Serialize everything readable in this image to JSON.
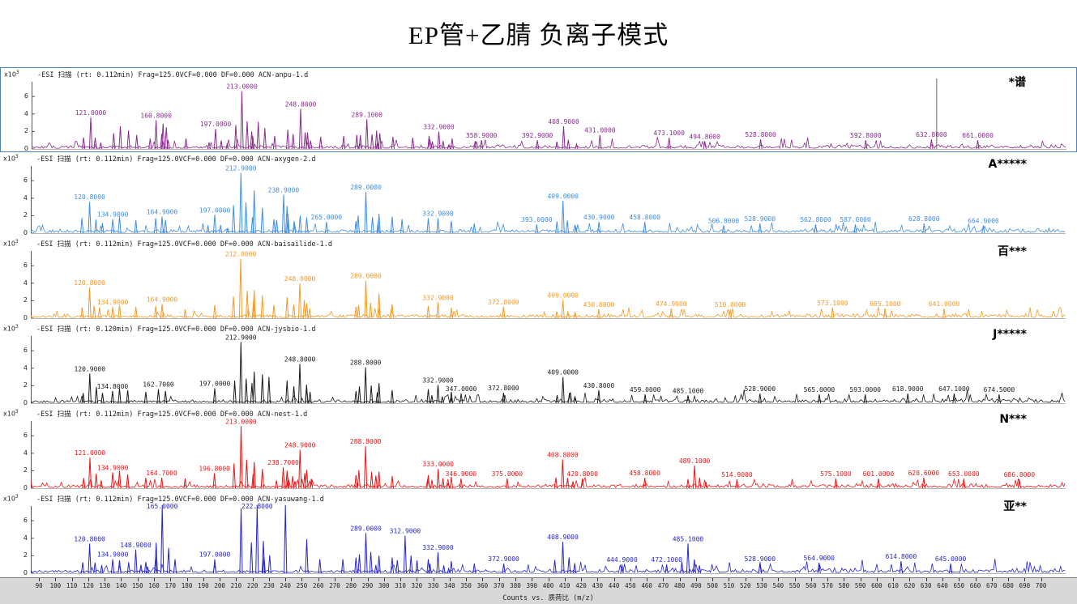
{
  "title": "EP管+乙腈 负离子模式",
  "axis": {
    "x_min": 90,
    "x_max": 700,
    "x_step": 10,
    "x_title": "Counts vs. 质荷比 (m/z)",
    "y_unit": "x10",
    "y_exp": "3",
    "y_ticks": [
      0,
      2,
      4,
      6
    ]
  },
  "chart_data": [
    {
      "type": "line",
      "name": "ACN-anpu-1.d",
      "header": "-ESI 扫描 (rt: 0.112min) Frag=125.0VCF=0.000 DF=0.000 ACN-anpu-1.d",
      "right_label": "*谱",
      "color": "#8a2b8f",
      "selected": true,
      "cursor_mz": 636,
      "peaks": [
        {
          "mz": 121.0,
          "h": 3.6,
          "label": "121.0000"
        },
        {
          "mz": 160.8,
          "h": 3.3,
          "label": "160.8000"
        },
        {
          "mz": 197.0,
          "h": 2.3,
          "label": "197.0000"
        },
        {
          "mz": 213.0,
          "h": 6.6,
          "label": "213.0000"
        },
        {
          "mz": 248.8,
          "h": 4.6,
          "label": "248.8000"
        },
        {
          "mz": 289.1,
          "h": 3.4,
          "label": "289.1000"
        },
        {
          "mz": 332.9,
          "h": 2.0,
          "label": "332.9000"
        },
        {
          "mz": 358.9,
          "h": 1.0,
          "label": "358.9000"
        },
        {
          "mz": 392.9,
          "h": 1.0,
          "label": "392.9000"
        },
        {
          "mz": 408.9,
          "h": 2.6,
          "label": "408.9000"
        },
        {
          "mz": 431.0,
          "h": 1.6,
          "label": "431.0000"
        },
        {
          "mz": 473.1,
          "h": 1.3,
          "label": "473.1000"
        },
        {
          "mz": 494.8,
          "h": 0.9,
          "label": "494.8000"
        },
        {
          "mz": 528.8,
          "h": 1.1,
          "label": "528.8000"
        },
        {
          "mz": 592.8,
          "h": 1.0,
          "label": "592.8000"
        },
        {
          "mz": 632.8,
          "h": 1.1,
          "label": "632.8000"
        },
        {
          "mz": 661.0,
          "h": 1.0,
          "label": "661.0000"
        },
        {
          "mz": 135,
          "h": 1.8
        },
        {
          "mz": 139,
          "h": 2.6
        },
        {
          "mz": 144,
          "h": 2.1
        },
        {
          "mz": 149,
          "h": 1.6
        },
        {
          "mz": 165,
          "h": 2.9
        },
        {
          "mz": 167,
          "h": 2.5
        },
        {
          "mz": 179,
          "h": 1.2
        },
        {
          "mz": 219,
          "h": 2.0
        },
        {
          "mz": 223,
          "h": 3.1
        },
        {
          "mz": 227,
          "h": 2.4
        },
        {
          "mz": 233,
          "h": 1.5
        },
        {
          "mz": 241,
          "h": 2.2
        },
        {
          "mz": 253,
          "h": 1.9
        },
        {
          "mz": 261,
          "h": 1.4
        },
        {
          "mz": 275,
          "h": 1.5
        },
        {
          "mz": 283,
          "h": 1.6
        },
        {
          "mz": 295,
          "h": 2.1
        },
        {
          "mz": 297,
          "h": 1.8
        },
        {
          "mz": 305,
          "h": 1.4
        },
        {
          "mz": 317,
          "h": 1.3
        },
        {
          "mz": 327,
          "h": 1.5
        },
        {
          "mz": 341,
          "h": 1.2
        },
        {
          "mz": 355,
          "h": 0.9
        }
      ]
    },
    {
      "type": "line",
      "name": "ACN-axygen-2.d",
      "header": "-ESI 扫描 (rt: 0.112min) Frag=125.0VCF=0.000 DF=0.000 ACN-axygen-2.d",
      "right_label": "A*****",
      "color": "#3e8ee4",
      "selected": false,
      "peaks": [
        {
          "mz": 120.8,
          "h": 3.6,
          "label": "120.8000"
        },
        {
          "mz": 134.9,
          "h": 1.6,
          "label": "134.9000"
        },
        {
          "mz": 164.9,
          "h": 1.9,
          "label": "164.9000"
        },
        {
          "mz": 197.0,
          "h": 2.1,
          "label": "197.0000"
        },
        {
          "mz": 212.9,
          "h": 6.9,
          "label": "212.9000"
        },
        {
          "mz": 238.9,
          "h": 4.4,
          "label": "238.9000"
        },
        {
          "mz": 265.0,
          "h": 1.3,
          "label": "265.0000"
        },
        {
          "mz": 289.0,
          "h": 4.7,
          "label": "289.0000"
        },
        {
          "mz": 332.9,
          "h": 1.7,
          "label": "332.9000"
        },
        {
          "mz": 393.0,
          "h": 1.0,
          "label": "393.0000"
        },
        {
          "mz": 409.0,
          "h": 3.7,
          "label": "409.0000"
        },
        {
          "mz": 430.9,
          "h": 1.3,
          "label": "430.9000"
        },
        {
          "mz": 458.8,
          "h": 1.3,
          "label": "458.8000"
        },
        {
          "mz": 506.8,
          "h": 0.9,
          "label": "506.8000"
        },
        {
          "mz": 528.9,
          "h": 1.1,
          "label": "528.9000"
        },
        {
          "mz": 562.8,
          "h": 1.0,
          "label": "562.8000"
        },
        {
          "mz": 587.0,
          "h": 1.0,
          "label": "587.0000"
        },
        {
          "mz": 628.8,
          "h": 1.1,
          "label": "628.8000"
        },
        {
          "mz": 664.9,
          "h": 0.9,
          "label": "664.9000"
        },
        {
          "mz": 139,
          "h": 1.9
        },
        {
          "mz": 149,
          "h": 1.5
        },
        {
          "mz": 161,
          "h": 1.7
        },
        {
          "mz": 167,
          "h": 1.5
        },
        {
          "mz": 221,
          "h": 4.9
        },
        {
          "mz": 226,
          "h": 2.9
        },
        {
          "mz": 233,
          "h": 1.6
        },
        {
          "mz": 241,
          "h": 3.1
        },
        {
          "mz": 249,
          "h": 2.0
        },
        {
          "mz": 253,
          "h": 1.8
        },
        {
          "mz": 283,
          "h": 1.4
        },
        {
          "mz": 297,
          "h": 2.2
        },
        {
          "mz": 305,
          "h": 1.9
        },
        {
          "mz": 311,
          "h": 1.6
        },
        {
          "mz": 327,
          "h": 1.7
        },
        {
          "mz": 341,
          "h": 1.4
        },
        {
          "mz": 355,
          "h": 1.1
        }
      ]
    },
    {
      "type": "line",
      "name": "ACN-baisailide-1.d",
      "header": "-ESI 扫描 (rt: 0.112min) Frag=125.0VCF=0.000 DF=0.000 ACN-baisailide-1.d",
      "right_label": "百***",
      "color": "#f59a23",
      "selected": false,
      "peaks": [
        {
          "mz": 120.8,
          "h": 3.5,
          "label": "120.8000"
        },
        {
          "mz": 134.9,
          "h": 1.3,
          "label": "134.9000"
        },
        {
          "mz": 164.9,
          "h": 1.6,
          "label": "164.9000"
        },
        {
          "mz": 212.8,
          "h": 6.8,
          "label": "212.8000"
        },
        {
          "mz": 248.8,
          "h": 4.0,
          "label": "248.8000"
        },
        {
          "mz": 289.0,
          "h": 4.3,
          "label": "289.0000"
        },
        {
          "mz": 332.9,
          "h": 1.8,
          "label": "332.9000"
        },
        {
          "mz": 372.8,
          "h": 1.3,
          "label": "372.8000"
        },
        {
          "mz": 409.0,
          "h": 2.1,
          "label": "409.0000"
        },
        {
          "mz": 430.8,
          "h": 1.0,
          "label": "430.8000"
        },
        {
          "mz": 474.9,
          "h": 1.1,
          "label": "474.9000"
        },
        {
          "mz": 510.8,
          "h": 1.0,
          "label": "510.8000"
        },
        {
          "mz": 573.1,
          "h": 1.2,
          "label": "573.1000"
        },
        {
          "mz": 605.1,
          "h": 1.1,
          "label": "605.1000"
        },
        {
          "mz": 641.0,
          "h": 1.1,
          "label": "641.0000"
        },
        {
          "mz": 139,
          "h": 1.5
        },
        {
          "mz": 149,
          "h": 1.3
        },
        {
          "mz": 161,
          "h": 1.4
        },
        {
          "mz": 179,
          "h": 1.0
        },
        {
          "mz": 197,
          "h": 1.5
        },
        {
          "mz": 221,
          "h": 3.2
        },
        {
          "mz": 226,
          "h": 2.6
        },
        {
          "mz": 233,
          "h": 1.5
        },
        {
          "mz": 241,
          "h": 2.4
        },
        {
          "mz": 253,
          "h": 1.7
        },
        {
          "mz": 283,
          "h": 1.3
        },
        {
          "mz": 297,
          "h": 2.8
        },
        {
          "mz": 305,
          "h": 1.6
        },
        {
          "mz": 327,
          "h": 1.4
        },
        {
          "mz": 341,
          "h": 1.2
        }
      ]
    },
    {
      "type": "line",
      "name": "ACN-jysbio-1.d",
      "header": "-ESI 扫描 (rt: 0.120min) Frag=125.0VCF=0.000 DF=0.000 ACN-jysbio-1.d",
      "right_label": "J*****",
      "color": "#1a1a1a",
      "selected": false,
      "peaks": [
        {
          "mz": 120.9,
          "h": 3.4,
          "label": "120.9000"
        },
        {
          "mz": 134.8,
          "h": 1.4,
          "label": "134.8000"
        },
        {
          "mz": 162.7,
          "h": 1.6,
          "label": "162.7000"
        },
        {
          "mz": 197.0,
          "h": 1.7,
          "label": "197.0000"
        },
        {
          "mz": 212.9,
          "h": 7.0,
          "label": "212.9000"
        },
        {
          "mz": 248.8,
          "h": 4.5,
          "label": "248.8000"
        },
        {
          "mz": 288.8,
          "h": 4.1,
          "label": "288.8000"
        },
        {
          "mz": 332.9,
          "h": 2.1,
          "label": "332.9000"
        },
        {
          "mz": 347.0,
          "h": 1.1,
          "label": "347.0000"
        },
        {
          "mz": 372.8,
          "h": 1.2,
          "label": "372.8000"
        },
        {
          "mz": 409.0,
          "h": 3.0,
          "label": "409.0000"
        },
        {
          "mz": 430.8,
          "h": 1.5,
          "label": "430.8000"
        },
        {
          "mz": 459.0,
          "h": 1.0,
          "label": "459.0000"
        },
        {
          "mz": 485.1,
          "h": 0.9,
          "label": "485.1000"
        },
        {
          "mz": 528.9,
          "h": 1.1,
          "label": "528.9000"
        },
        {
          "mz": 565.0,
          "h": 1.0,
          "label": "565.0000"
        },
        {
          "mz": 593.0,
          "h": 1.0,
          "label": "593.0000"
        },
        {
          "mz": 618.9,
          "h": 1.1,
          "label": "618.9000"
        },
        {
          "mz": 647.1,
          "h": 1.1,
          "label": "647.1000"
        },
        {
          "mz": 674.5,
          "h": 1.0,
          "label": "674.5000"
        },
        {
          "mz": 139,
          "h": 1.7
        },
        {
          "mz": 144,
          "h": 1.5
        },
        {
          "mz": 155,
          "h": 1.3
        },
        {
          "mz": 167,
          "h": 1.4
        },
        {
          "mz": 221,
          "h": 3.6
        },
        {
          "mz": 226,
          "h": 3.3
        },
        {
          "mz": 230,
          "h": 3.0
        },
        {
          "mz": 241,
          "h": 2.6
        },
        {
          "mz": 253,
          "h": 1.8
        },
        {
          "mz": 283,
          "h": 1.4
        },
        {
          "mz": 297,
          "h": 2.3
        },
        {
          "mz": 305,
          "h": 1.5
        },
        {
          "mz": 327,
          "h": 1.6
        },
        {
          "mz": 341,
          "h": 1.3
        }
      ]
    },
    {
      "type": "line",
      "name": "ACN-nest-1.d",
      "header": "-ESI 扫描 (rt: 0.112min) Frag=125.0VCF=0.000 DF=0.000 ACN-nest-1.d",
      "right_label": "N***",
      "color": "#ec1515",
      "selected": false,
      "peaks": [
        {
          "mz": 121.0,
          "h": 3.5,
          "label": "121.0000"
        },
        {
          "mz": 134.9,
          "h": 1.8,
          "label": "134.9000"
        },
        {
          "mz": 164.7,
          "h": 1.2,
          "label": "164.7000"
        },
        {
          "mz": 196.8,
          "h": 1.7,
          "label": "196.8000"
        },
        {
          "mz": 213.0,
          "h": 7.1,
          "label": "213.0000"
        },
        {
          "mz": 238.7,
          "h": 2.4,
          "label": "238.7000"
        },
        {
          "mz": 248.9,
          "h": 4.4,
          "label": "248.9000"
        },
        {
          "mz": 288.8,
          "h": 4.8,
          "label": "288.8000"
        },
        {
          "mz": 333.0,
          "h": 2.2,
          "label": "333.0000"
        },
        {
          "mz": 346.9,
          "h": 1.1,
          "label": "346.9000"
        },
        {
          "mz": 375.0,
          "h": 1.1,
          "label": "375.0000"
        },
        {
          "mz": 408.8,
          "h": 3.3,
          "label": "408.8000"
        },
        {
          "mz": 420.8,
          "h": 1.1,
          "label": "420.8000"
        },
        {
          "mz": 458.8,
          "h": 1.2,
          "label": "458.8000"
        },
        {
          "mz": 489.1,
          "h": 2.6,
          "label": "489.1000"
        },
        {
          "mz": 514.9,
          "h": 1.0,
          "label": "514.9000"
        },
        {
          "mz": 575.1,
          "h": 1.1,
          "label": "575.1000"
        },
        {
          "mz": 601.0,
          "h": 1.1,
          "label": "601.0000"
        },
        {
          "mz": 628.6,
          "h": 1.2,
          "label": "628.6000"
        },
        {
          "mz": 653.0,
          "h": 1.1,
          "label": "653.0000"
        },
        {
          "mz": 686.8,
          "h": 1.0,
          "label": "686.8000"
        },
        {
          "mz": 139,
          "h": 2.0
        },
        {
          "mz": 144,
          "h": 1.6
        },
        {
          "mz": 155,
          "h": 1.2
        },
        {
          "mz": 179,
          "h": 1.1
        },
        {
          "mz": 221,
          "h": 3.0
        },
        {
          "mz": 226,
          "h": 2.2
        },
        {
          "mz": 241,
          "h": 2.0
        },
        {
          "mz": 253,
          "h": 2.1
        },
        {
          "mz": 283,
          "h": 1.5
        },
        {
          "mz": 297,
          "h": 1.9
        },
        {
          "mz": 305,
          "h": 1.4
        },
        {
          "mz": 327,
          "h": 1.5
        },
        {
          "mz": 341,
          "h": 1.3
        }
      ]
    },
    {
      "type": "line",
      "name": "ACN-yasuwang-1.d",
      "header": "-ESI 扫描 (rt: 0.112min) Frag=125.0VCF=0.000 DF=0.000 ACN-yasuwang-1.d",
      "right_label": "亚**",
      "color": "#2626cd",
      "selected": false,
      "peaks": [
        {
          "mz": 120.8,
          "h": 3.4,
          "label": "120.8000"
        },
        {
          "mz": 134.9,
          "h": 1.6,
          "label": "134.9000"
        },
        {
          "mz": 148.9,
          "h": 2.7,
          "label": "148.9000"
        },
        {
          "mz": 165.0,
          "h": 7.8,
          "label": "165.0000"
        },
        {
          "mz": 197.0,
          "h": 1.6,
          "label": "197.0000"
        },
        {
          "mz": 222.8,
          "h": 7.8,
          "label": "222.8000"
        },
        {
          "mz": 289.0,
          "h": 4.6,
          "label": "289.0000"
        },
        {
          "mz": 312.9,
          "h": 4.3,
          "label": "312.9000"
        },
        {
          "mz": 332.9,
          "h": 2.4,
          "label": "332.9000"
        },
        {
          "mz": 372.9,
          "h": 1.1,
          "label": "372.9000"
        },
        {
          "mz": 408.9,
          "h": 3.6,
          "label": "408.9000"
        },
        {
          "mz": 444.9,
          "h": 1.0,
          "label": "444.9000"
        },
        {
          "mz": 472.1,
          "h": 1.0,
          "label": "472.1000"
        },
        {
          "mz": 485.1,
          "h": 3.4,
          "label": "485.1000"
        },
        {
          "mz": 528.9,
          "h": 1.1,
          "label": "528.9000"
        },
        {
          "mz": 564.9,
          "h": 1.2,
          "label": "564.9000"
        },
        {
          "mz": 614.8,
          "h": 1.4,
          "label": "614.8000"
        },
        {
          "mz": 645.0,
          "h": 1.1,
          "label": "645.0000"
        },
        {
          "mz": 139,
          "h": 1.5
        },
        {
          "mz": 155,
          "h": 1.3
        },
        {
          "mz": 161,
          "h": 1.9
        },
        {
          "mz": 213,
          "h": 7.4
        },
        {
          "mz": 227,
          "h": 2.0
        },
        {
          "mz": 240,
          "h": 7.8
        },
        {
          "mz": 253,
          "h": 3.9
        },
        {
          "mz": 261,
          "h": 1.6
        },
        {
          "mz": 275,
          "h": 1.6
        },
        {
          "mz": 283,
          "h": 1.8
        },
        {
          "mz": 297,
          "h": 2.0
        },
        {
          "mz": 305,
          "h": 1.8
        },
        {
          "mz": 327,
          "h": 1.6
        },
        {
          "mz": 341,
          "h": 1.4
        },
        {
          "mz": 355,
          "h": 1.1
        }
      ]
    }
  ]
}
